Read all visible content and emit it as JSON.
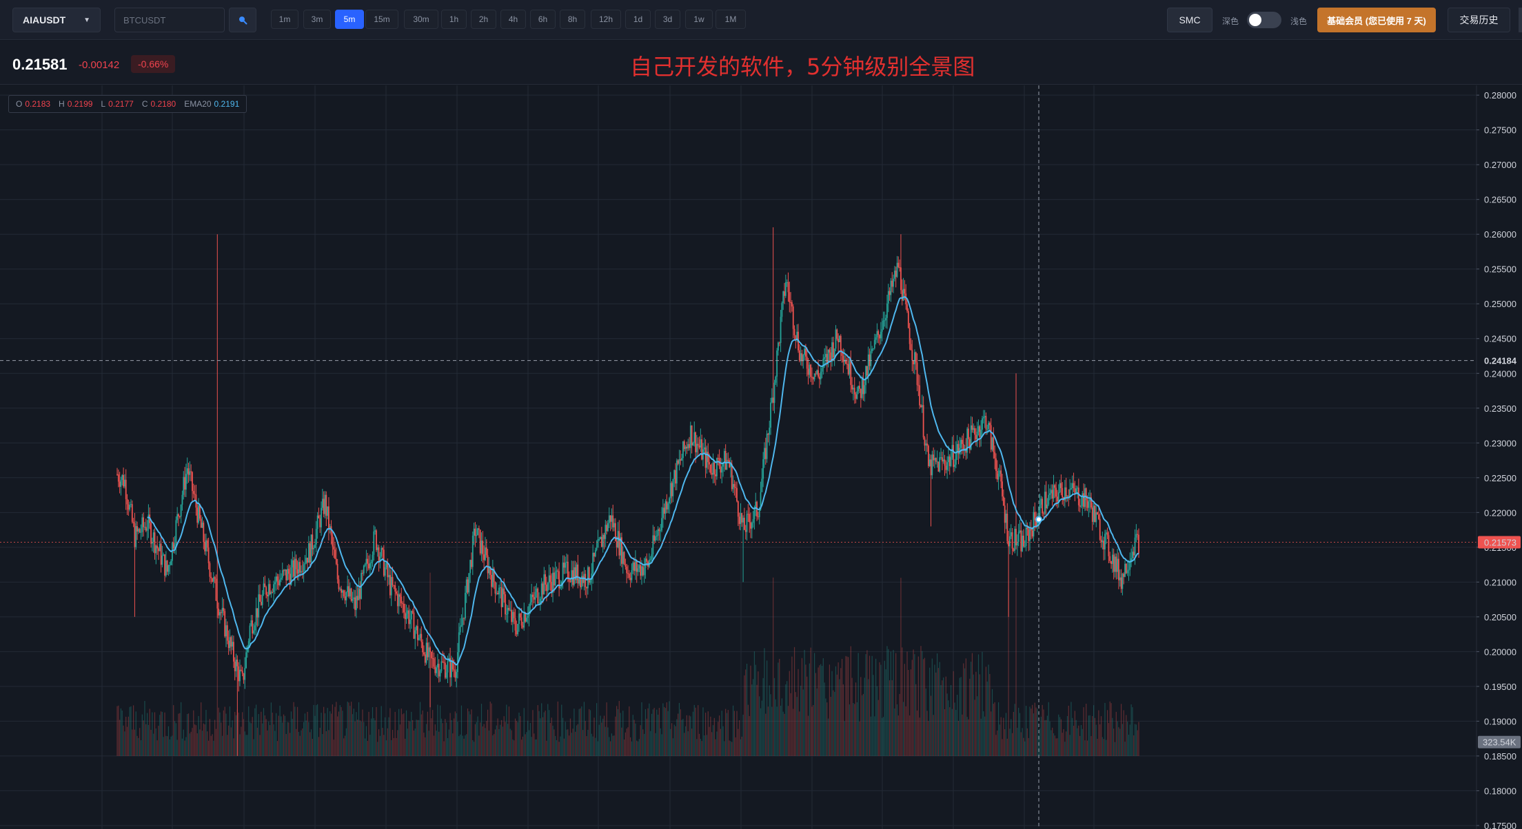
{
  "toolbar": {
    "symbol": "AIAUSDT",
    "search_placeholder": "BTCUSDT",
    "intervals": [
      "1m",
      "3m",
      "5m",
      "15m",
      "30m",
      "1h",
      "2h",
      "4h",
      "6h",
      "8h",
      "12h",
      "1d",
      "3d",
      "1w",
      "1M"
    ],
    "active_interval": "5m",
    "smc_label": "SMC",
    "dark_label": "深色",
    "light_label": "浅色",
    "theme_toggle_state": "dark",
    "member_label": "基础会员 (您已使用 7 天)",
    "history_label": "交易历史"
  },
  "ticker": {
    "last_price": "0.21581",
    "change": "-0.00142",
    "change_pct": "-0.66%",
    "annotation": "自己开发的软件，5分钟级别全景图"
  },
  "legend": {
    "o_label": "O",
    "o_value": "0.2183",
    "h_label": "H",
    "h_value": "0.2199",
    "l_label": "L",
    "l_value": "0.2177",
    "c_label": "C",
    "c_value": "0.2180",
    "ema_label": "EMA20",
    "ema_value": "0.2191"
  },
  "colors": {
    "up": "#26a69a",
    "down": "#ef5350",
    "ema": "#4fb8ef",
    "price_marker": "#ef5350",
    "volume_marker": "#6b7280",
    "grid": "#232a36"
  },
  "chart_data": {
    "type": "candlestick",
    "symbol": "AIAUSDT",
    "interval": "5m",
    "y_axis_ticks": [
      "0.28000",
      "0.27500",
      "0.27000",
      "0.26500",
      "0.26000",
      "0.25500",
      "0.25000",
      "0.24500",
      "0.24000",
      "0.23500",
      "0.23000",
      "0.22500",
      "0.22000",
      "0.21500",
      "0.21000",
      "0.20500",
      "0.20000",
      "0.19500",
      "0.19000",
      "0.18500",
      "0.18000",
      "0.17500"
    ],
    "ylim": [
      0.1745,
      0.2814
    ],
    "crosshair_price": "0.24184",
    "current_price_marker": "0.21573",
    "volume_marker": "323.54K",
    "price_path": [
      {
        "i": 0,
        "p": 0.2255
      },
      {
        "i": 6,
        "p": 0.2245
      },
      {
        "i": 14,
        "p": 0.2165
      },
      {
        "i": 24,
        "p": 0.2185
      },
      {
        "i": 40,
        "p": 0.2115
      },
      {
        "i": 56,
        "p": 0.2265
      },
      {
        "i": 66,
        "p": 0.2185
      },
      {
        "i": 80,
        "p": 0.2075
      },
      {
        "i": 94,
        "p": 0.1985
      },
      {
        "i": 100,
        "p": 0.1955
      },
      {
        "i": 106,
        "p": 0.2035
      },
      {
        "i": 120,
        "p": 0.2095
      },
      {
        "i": 140,
        "p": 0.2115
      },
      {
        "i": 154,
        "p": 0.2145
      },
      {
        "i": 166,
        "p": 0.2215
      },
      {
        "i": 176,
        "p": 0.2105
      },
      {
        "i": 190,
        "p": 0.2065
      },
      {
        "i": 206,
        "p": 0.2165
      },
      {
        "i": 218,
        "p": 0.2095
      },
      {
        "i": 232,
        "p": 0.2055
      },
      {
        "i": 250,
        "p": 0.1985
      },
      {
        "i": 270,
        "p": 0.1975
      },
      {
        "i": 286,
        "p": 0.2175
      },
      {
        "i": 300,
        "p": 0.2105
      },
      {
        "i": 318,
        "p": 0.2035
      },
      {
        "i": 340,
        "p": 0.2095
      },
      {
        "i": 360,
        "p": 0.2115
      },
      {
        "i": 376,
        "p": 0.2105
      },
      {
        "i": 394,
        "p": 0.2195
      },
      {
        "i": 408,
        "p": 0.2115
      },
      {
        "i": 424,
        "p": 0.2125
      },
      {
        "i": 440,
        "p": 0.2225
      },
      {
        "i": 458,
        "p": 0.2315
      },
      {
        "i": 474,
        "p": 0.2265
      },
      {
        "i": 488,
        "p": 0.2275
      },
      {
        "i": 500,
        "p": 0.2175
      },
      {
        "i": 512,
        "p": 0.2205
      },
      {
        "i": 524,
        "p": 0.2375
      },
      {
        "i": 534,
        "p": 0.2535
      },
      {
        "i": 546,
        "p": 0.2425
      },
      {
        "i": 560,
        "p": 0.2395
      },
      {
        "i": 576,
        "p": 0.2455
      },
      {
        "i": 592,
        "p": 0.2365
      },
      {
        "i": 608,
        "p": 0.2455
      },
      {
        "i": 624,
        "p": 0.2555
      },
      {
        "i": 632,
        "p": 0.2465
      },
      {
        "i": 640,
        "p": 0.2385
      },
      {
        "i": 648,
        "p": 0.2265
      },
      {
        "i": 664,
        "p": 0.2275
      },
      {
        "i": 680,
        "p": 0.2305
      },
      {
        "i": 694,
        "p": 0.2335
      },
      {
        "i": 704,
        "p": 0.2255
      },
      {
        "i": 712,
        "p": 0.2165
      },
      {
        "i": 724,
        "p": 0.2155
      },
      {
        "i": 740,
        "p": 0.2215
      },
      {
        "i": 758,
        "p": 0.2235
      },
      {
        "i": 776,
        "p": 0.2215
      },
      {
        "i": 790,
        "p": 0.2155
      },
      {
        "i": 802,
        "p": 0.2105
      },
      {
        "i": 812,
        "p": 0.2155
      },
      {
        "i": 816,
        "p": 0.2158
      }
    ],
    "ema_period": 20
  }
}
